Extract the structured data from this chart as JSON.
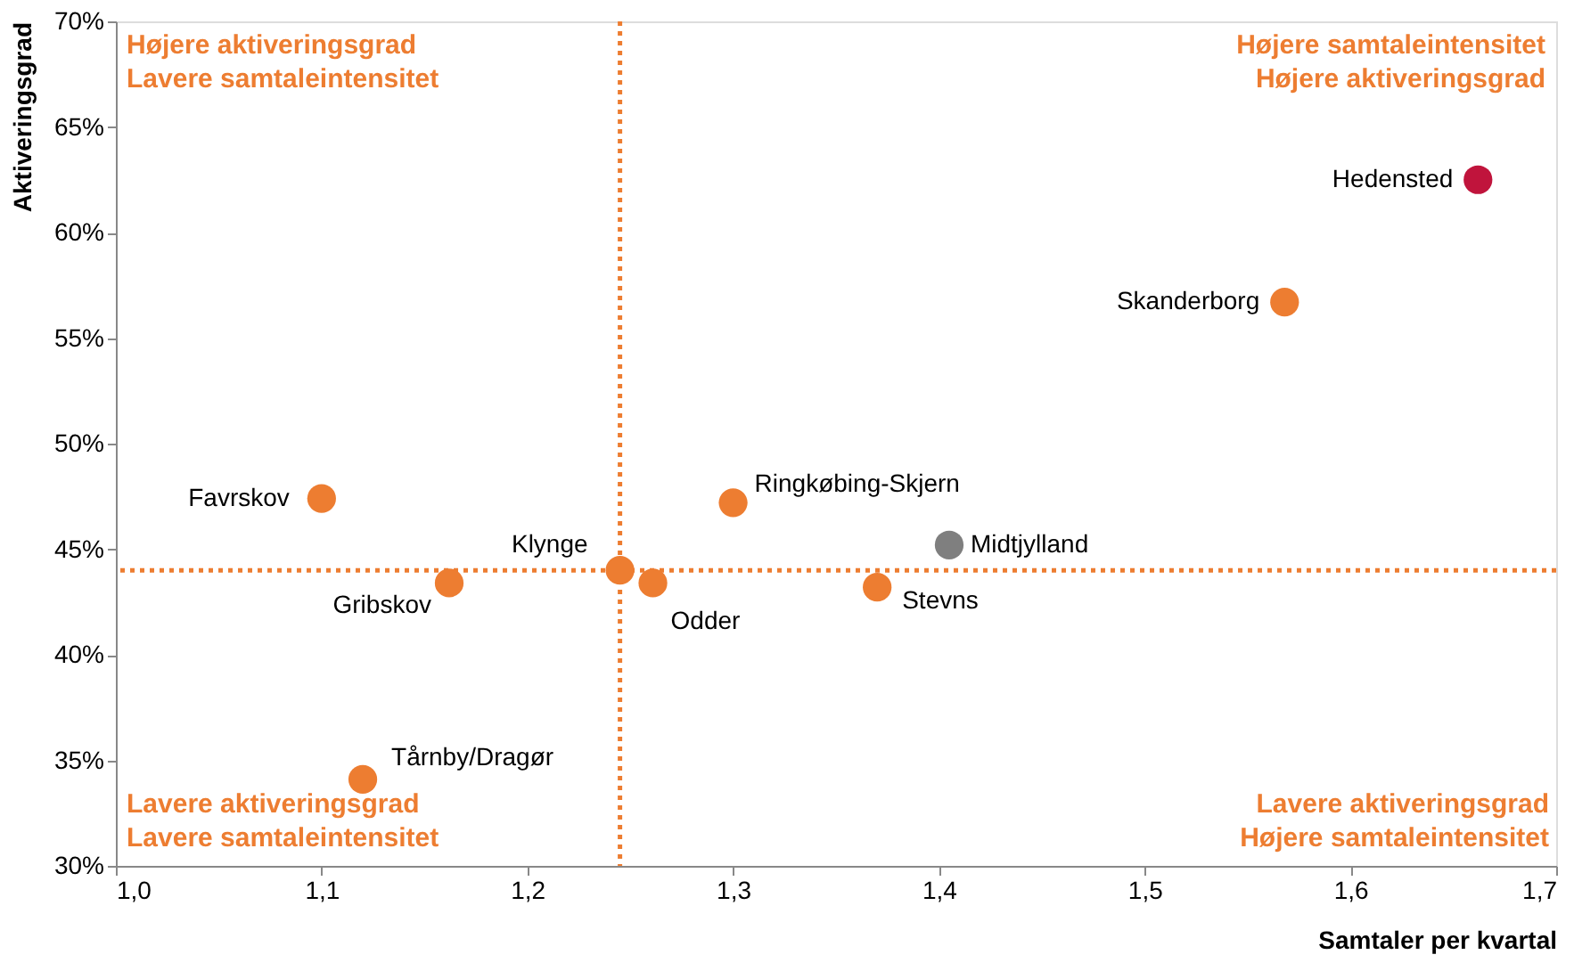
{
  "chart_data": {
    "type": "scatter",
    "xlabel": "Samtaler per kvartal",
    "ylabel": "Aktiveringsgrad",
    "xlim": [
      1.0,
      1.7
    ],
    "ylim": [
      30,
      70
    ],
    "xticks": [
      {
        "value": 1.0,
        "label": "1,0"
      },
      {
        "value": 1.1,
        "label": "1,1"
      },
      {
        "value": 1.2,
        "label": "1,2"
      },
      {
        "value": 1.3,
        "label": "1,3"
      },
      {
        "value": 1.4,
        "label": "1,4"
      },
      {
        "value": 1.5,
        "label": "1,5"
      },
      {
        "value": 1.6,
        "label": "1,6"
      },
      {
        "value": 1.7,
        "label": "1,7"
      }
    ],
    "yticks": [
      {
        "value": 30,
        "label": "30%"
      },
      {
        "value": 35,
        "label": "35%"
      },
      {
        "value": 40,
        "label": "40%"
      },
      {
        "value": 45,
        "label": "45%"
      },
      {
        "value": 50,
        "label": "50%"
      },
      {
        "value": 55,
        "label": "55%"
      },
      {
        "value": 60,
        "label": "60%"
      },
      {
        "value": 65,
        "label": "65%"
      },
      {
        "value": 70,
        "label": "70%"
      }
    ],
    "grid": false,
    "marker": "circle",
    "series": [
      {
        "name": "Hedensted",
        "color": "#c0143c",
        "x": [
          1.662
        ],
        "values": [
          62.5
        ]
      },
      {
        "name": "Skanderborg",
        "color": "#ed7d31",
        "x": [
          1.568
        ],
        "values": [
          56.7
        ]
      },
      {
        "name": "Favrskov",
        "color": "#ed7d31",
        "x": [
          1.1
        ],
        "values": [
          47.4
        ]
      },
      {
        "name": "Ringkøbing-Skjern",
        "color": "#ed7d31",
        "x": [
          1.3
        ],
        "values": [
          47.2
        ]
      },
      {
        "name": "Midtjylland",
        "color": "#7f7f7f",
        "x": [
          1.405
        ],
        "values": [
          45.2
        ]
      },
      {
        "name": "Klynge",
        "color": "#ed7d31",
        "x": [
          1.245
        ],
        "values": [
          44.0
        ]
      },
      {
        "name": "Gribskov",
        "color": "#ed7d31",
        "x": [
          1.162
        ],
        "values": [
          43.4
        ]
      },
      {
        "name": "Odder",
        "color": "#ed7d31",
        "x": [
          1.261
        ],
        "values": [
          43.4
        ]
      },
      {
        "name": "Stevns",
        "color": "#ed7d31",
        "x": [
          1.37
        ],
        "values": [
          43.2
        ]
      },
      {
        "name": "Tårnby/Dragør",
        "color": "#ed7d31",
        "x": [
          1.12
        ],
        "values": [
          34.1
        ]
      }
    ],
    "ref_lines": [
      {
        "axis": "x",
        "value": 1.245,
        "label": null,
        "color": "#ed7d31",
        "line_style": "dotted"
      },
      {
        "axis": "y",
        "value": 44,
        "label": null,
        "color": "#ed7d31",
        "line_style": "dotted"
      }
    ],
    "annotations": [
      "Højere aktiveringsgrad\nLavere samtaleintensitet",
      "Højere samtaleintensitet\nHøjere aktiveringsgrad",
      "Lavere aktiveringsgrad\nLavere samtaleintensitet",
      "Lavere aktiveringsgrad\nHøjere samtaleintensitet"
    ]
  }
}
